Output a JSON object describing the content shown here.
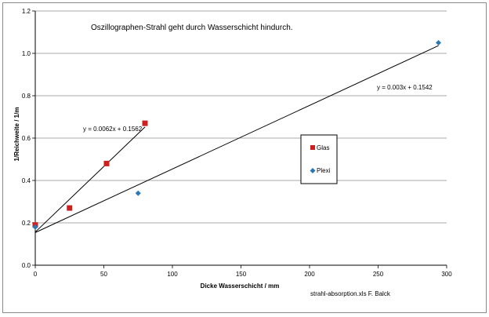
{
  "chart_data": {
    "type": "scatter",
    "title": "Oszillographen-Strahl geht durch Wasserschicht hindurch.",
    "xlabel": "Dicke Wasserschicht / mm",
    "ylabel": "1/Reichweite / 1/m",
    "xlim": [
      0,
      300
    ],
    "ylim": [
      0,
      1.2
    ],
    "x_ticks": [
      "0",
      "50",
      "100",
      "150",
      "200",
      "250",
      "300"
    ],
    "y_ticks": [
      "0.0",
      "0.2",
      "0.4",
      "0.6",
      "0.8",
      "1.0",
      "1.2"
    ],
    "grid": "horizontal",
    "legend_position": "right",
    "series": [
      {
        "name": "Glas",
        "color": "#cc2020",
        "marker": "square",
        "points": [
          [
            0,
            0.19
          ],
          [
            25,
            0.27
          ],
          [
            52,
            0.48
          ],
          [
            80,
            0.67
          ]
        ],
        "trendline": {
          "slope": 0.0062,
          "intercept": 0.1562,
          "x_range": [
            0,
            80
          ],
          "label": "y = 0.0062x + 0.1562"
        }
      },
      {
        "name": "Plexi",
        "color": "#2a78b8",
        "marker": "diamond",
        "points": [
          [
            0,
            0.18
          ],
          [
            75,
            0.34
          ],
          [
            294,
            1.05
          ]
        ],
        "trendline": {
          "slope": 0.003,
          "intercept": 0.1542,
          "x_range": [
            0,
            294
          ],
          "label": "y = 0.003x + 0.1542"
        }
      }
    ],
    "footnote": "strahl-absorption.xls F. Balck"
  }
}
